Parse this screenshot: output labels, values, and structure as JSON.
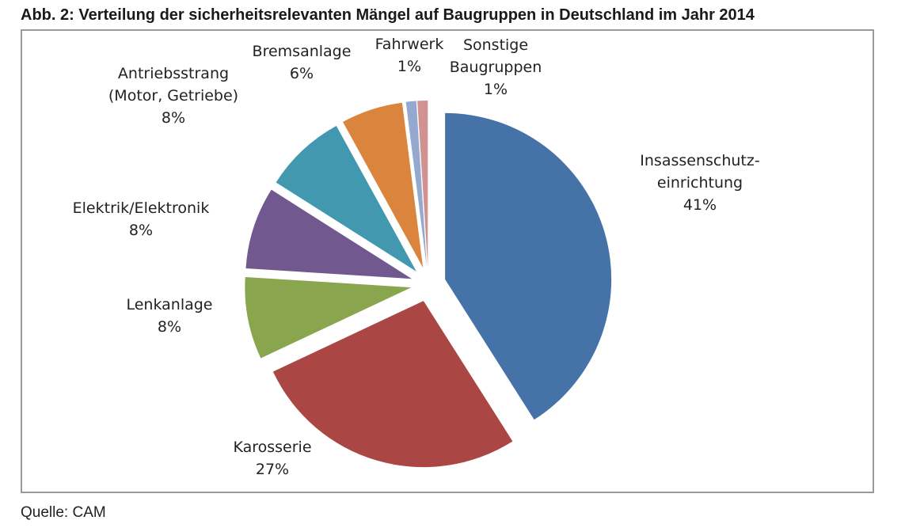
{
  "figure": {
    "title": "Abb. 2: Verteilung der sicherheitsrelevanten Mängel auf Baugruppen in Deutschland im Jahr 2014",
    "source": "Quelle: CAM"
  },
  "chart_data": {
    "type": "pie",
    "title": "Abb. 2: Verteilung der sicherheitsrelevanten Mängel auf Baugruppen in Deutschland im Jahr 2014",
    "exploded": true,
    "unit": "%",
    "slices": [
      {
        "name": "Insassenschutz-einrichtung",
        "label_lines": [
          "Insassenschutz-",
          "einrichtung"
        ],
        "value": 41,
        "label": "41%",
        "color": "#4572a7"
      },
      {
        "name": "Karosserie",
        "label_lines": [
          "Karosserie"
        ],
        "value": 27,
        "label": "27%",
        "color": "#aa4643"
      },
      {
        "name": "Lenkanlage",
        "label_lines": [
          "Lenkanlage"
        ],
        "value": 8,
        "label": "8%",
        "color": "#89a54e"
      },
      {
        "name": "Elektrik/Elektronik",
        "label_lines": [
          "Elektrik/Elektronik"
        ],
        "value": 8,
        "label": "8%",
        "color": "#71588f"
      },
      {
        "name": "Antriebsstrang (Motor, Getriebe)",
        "label_lines": [
          "Antriebsstrang",
          "(Motor, Getriebe)"
        ],
        "value": 8,
        "label": "8%",
        "color": "#4198af"
      },
      {
        "name": "Bremsanlage",
        "label_lines": [
          "Bremsanlage"
        ],
        "value": 6,
        "label": "6%",
        "color": "#db843d"
      },
      {
        "name": "Fahrwerk",
        "label_lines": [
          "Fahrwerk"
        ],
        "value": 1,
        "label": "1%",
        "color": "#93a9cf"
      },
      {
        "name": "Sonstige Baugruppen",
        "label_lines": [
          "Sonstige",
          "Baugruppen"
        ],
        "value": 1,
        "label": "1%",
        "color": "#d19392"
      }
    ]
  }
}
